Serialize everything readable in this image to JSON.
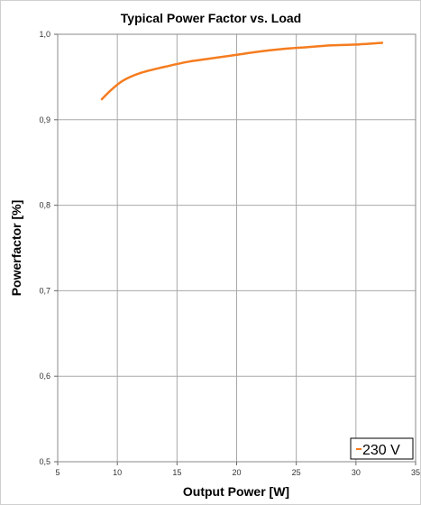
{
  "chart_data": {
    "type": "line",
    "title": "Typical Power Factor vs. Load",
    "xlabel": "Output Power [W]",
    "ylabel": "Powerfactor [%]",
    "xlim": [
      5,
      35
    ],
    "ylim": [
      0.5,
      1.0
    ],
    "x_ticks": [
      5,
      10,
      15,
      20,
      25,
      30,
      35
    ],
    "y_ticks": [
      0.5,
      0.6,
      0.7,
      0.8,
      0.9,
      1.0
    ],
    "x_tick_labels": [
      "5",
      "10",
      "15",
      "20",
      "25",
      "30",
      "35"
    ],
    "y_tick_labels": [
      "0,5",
      "0,6",
      "0,7",
      "0,8",
      "0,9",
      "1,0"
    ],
    "grid": true,
    "legend_position": "bottom-right",
    "series": [
      {
        "name": "230 V",
        "color": "#f57c1f",
        "x": [
          8.7,
          9.5,
          10.5,
          12,
          14,
          16,
          18,
          20,
          22,
          24,
          26,
          28,
          30,
          32.2
        ],
        "y": [
          0.924,
          0.935,
          0.946,
          0.955,
          0.962,
          0.968,
          0.972,
          0.976,
          0.98,
          0.983,
          0.985,
          0.987,
          0.988,
          0.99
        ]
      }
    ]
  }
}
